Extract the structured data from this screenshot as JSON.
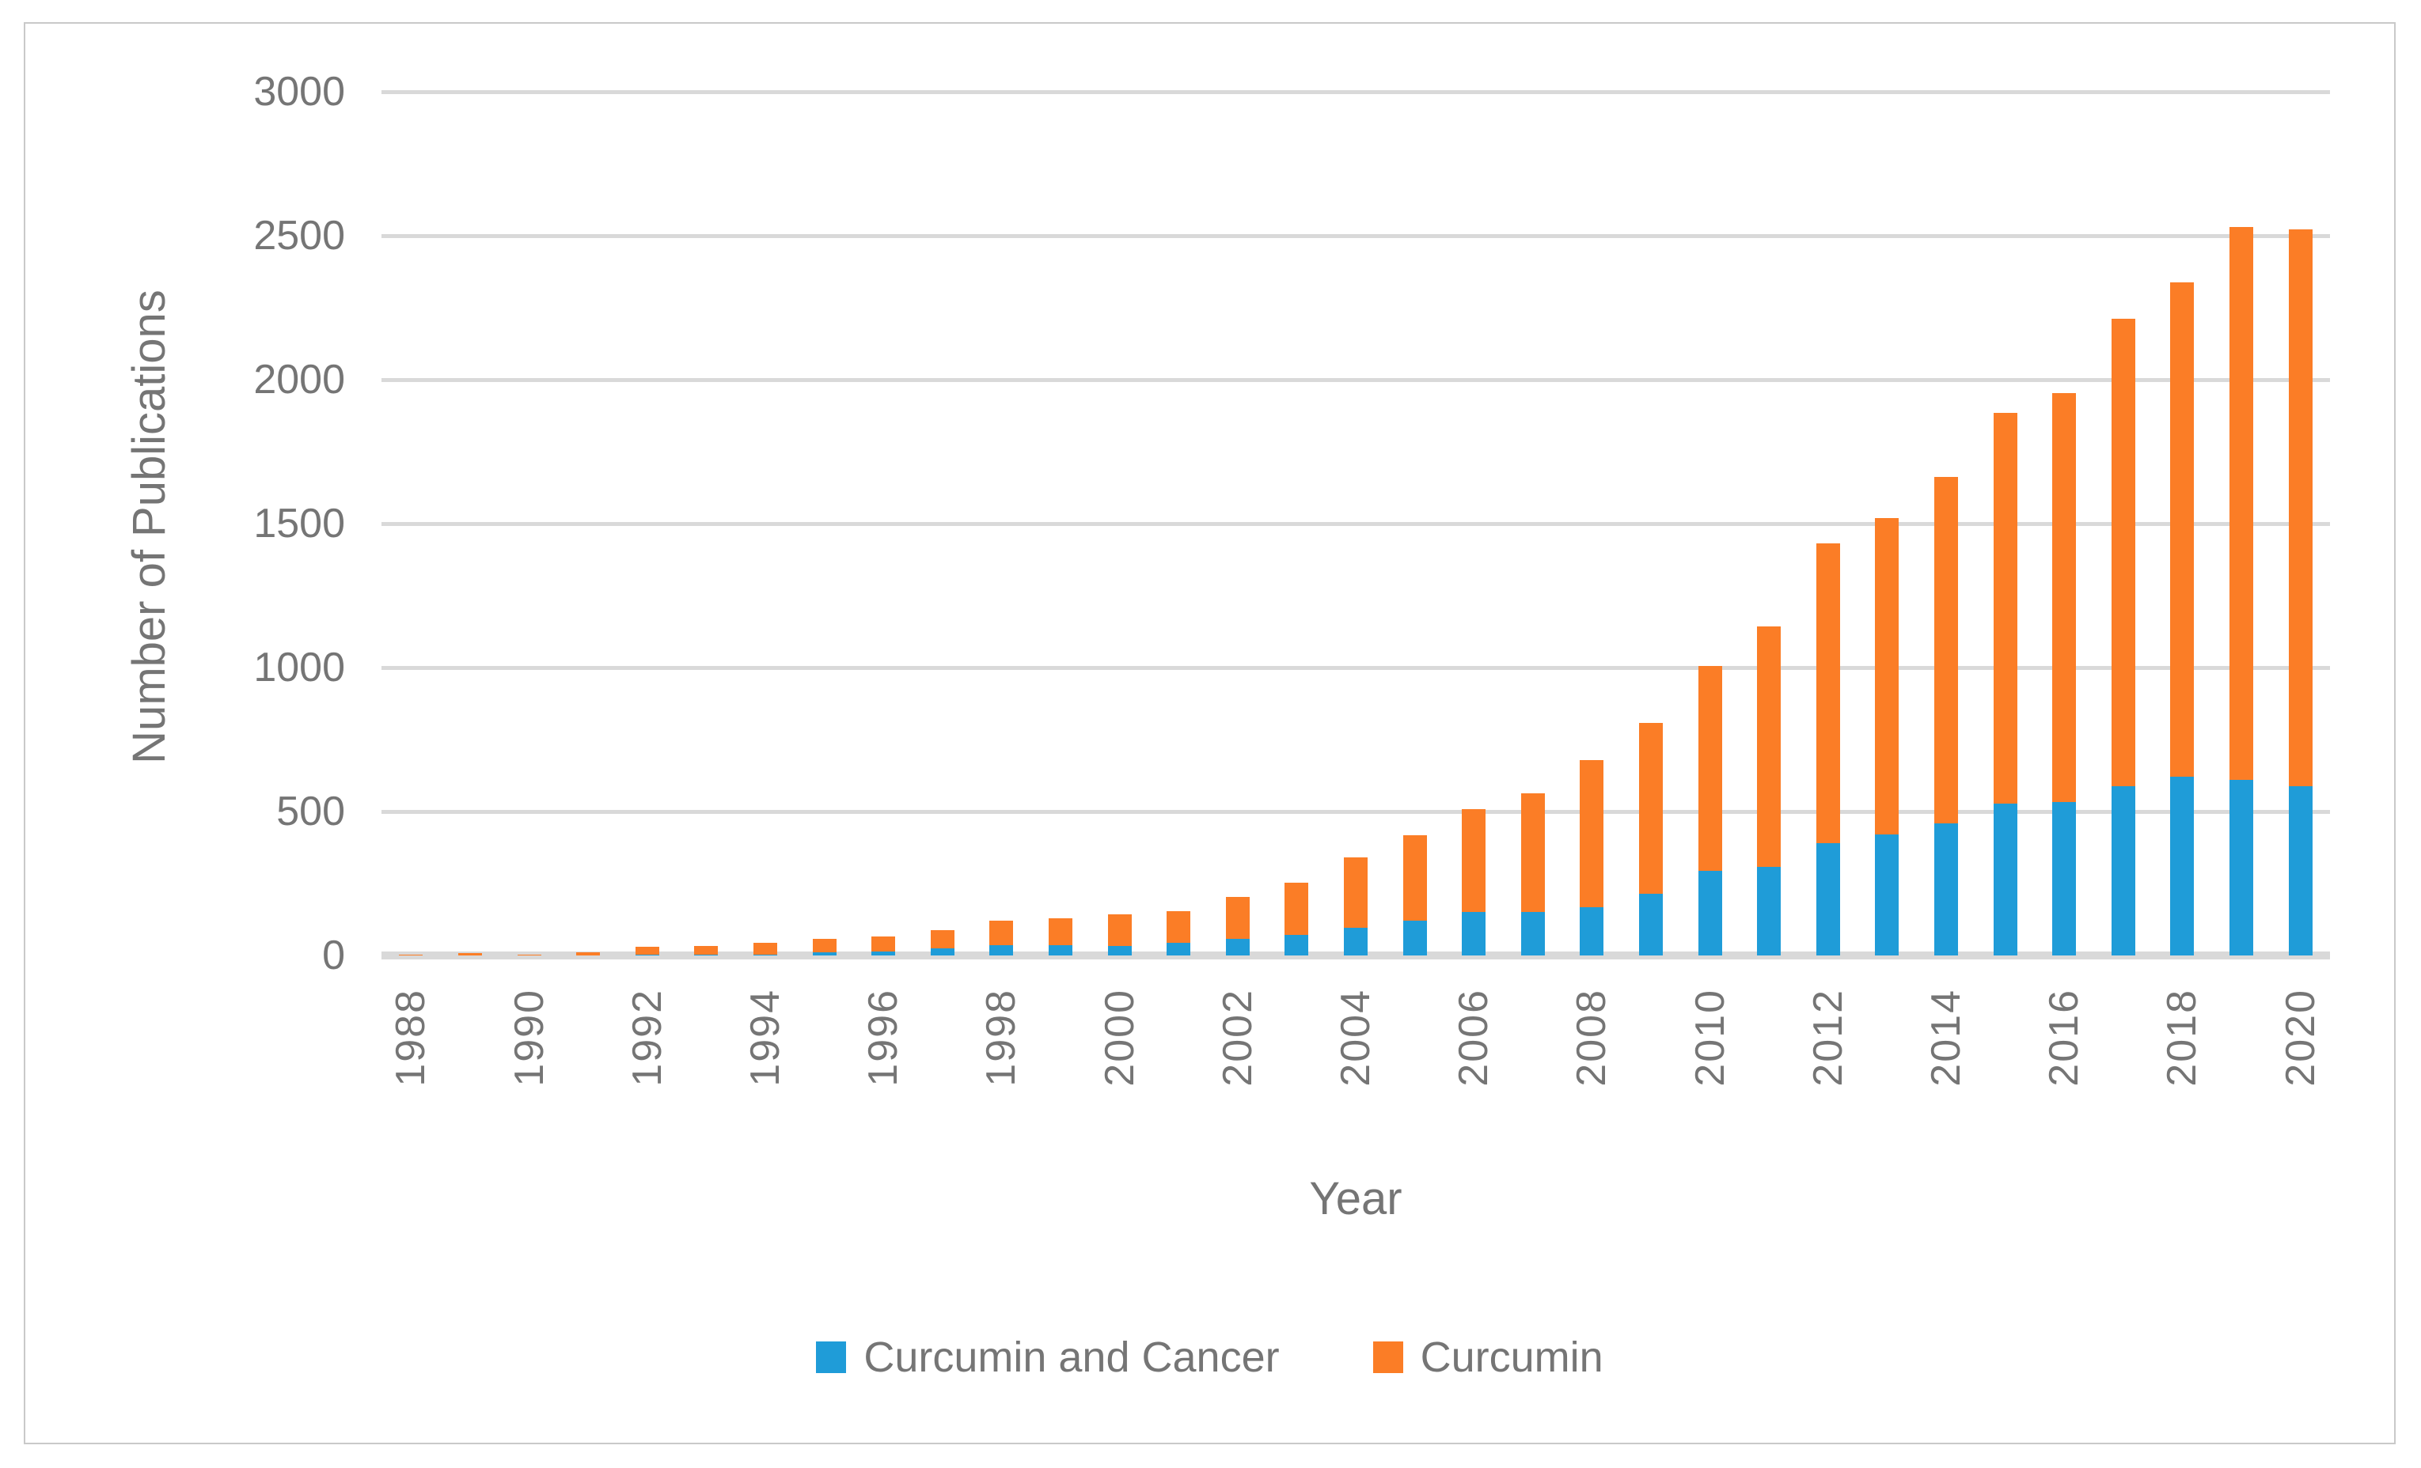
{
  "chart_data": {
    "type": "bar",
    "stacked": true,
    "title": "",
    "xlabel": "Year",
    "ylabel": "Number of Publications",
    "ylim": [
      0,
      3000
    ],
    "ytick_step": 500,
    "grid": true,
    "legend_position": "bottom",
    "x_label_every": 2,
    "categories": [
      1988,
      1989,
      1990,
      1991,
      1992,
      1993,
      1994,
      1995,
      1996,
      1997,
      1998,
      1999,
      2000,
      2001,
      2002,
      2003,
      2004,
      2005,
      2006,
      2007,
      2008,
      2009,
      2010,
      2011,
      2012,
      2013,
      2014,
      2015,
      2016,
      2017,
      2018,
      2019,
      2020
    ],
    "series": [
      {
        "name": "Curcumin and Cancer",
        "color": "#1f9cd8",
        "values": [
          0,
          0,
          0,
          0,
          2,
          2,
          3,
          12,
          15,
          24,
          37,
          37,
          32,
          44,
          57,
          72,
          97,
          122,
          150,
          152,
          167,
          214,
          293,
          309,
          389,
          420,
          460,
          527,
          534,
          588,
          620,
          610,
          588
        ]
      },
      {
        "name": "Curcumin",
        "color": "#fb7d26",
        "values": [
          2,
          8,
          2,
          10,
          28,
          30,
          41,
          46,
          52,
          64,
          84,
          92,
          110,
          110,
          146,
          182,
          245,
          297,
          357,
          411,
          511,
          594,
          712,
          834,
          1042,
          1099,
          1202,
          1358,
          1419,
          1623,
          1718,
          1920,
          1934
        ]
      }
    ]
  },
  "colors": {
    "gridline": "#d9d9d9",
    "axis_line": "#d9d9d9",
    "text": "#757575",
    "frame_border": "#c9c9c9",
    "background": "#ffffff"
  }
}
